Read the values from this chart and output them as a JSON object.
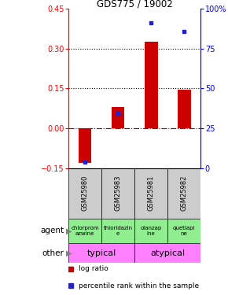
{
  "title": "GDS775 / 19002",
  "samples": [
    "GSM25980",
    "GSM25983",
    "GSM25981",
    "GSM25982"
  ],
  "log_ratios": [
    -0.13,
    0.08,
    0.325,
    0.145
  ],
  "percentile_ranks": [
    4,
    34.5,
    91,
    86
  ],
  "ylim_left": [
    -0.15,
    0.45
  ],
  "ylim_right": [
    0,
    100
  ],
  "yticks_left": [
    -0.15,
    0.0,
    0.15,
    0.3,
    0.45
  ],
  "yticks_right": [
    0,
    25,
    50,
    75,
    100
  ],
  "hlines": [
    0.15,
    0.3
  ],
  "bar_color": "#cc0000",
  "dot_color": "#2222cc",
  "agent_labels": [
    "chlorprom\nazwine",
    "thioridazin\ne",
    "olanzap\nine",
    "quetiapi\nne"
  ],
  "agent_color": "#90ee90",
  "other_groups": [
    [
      "typical",
      2
    ],
    [
      "atypical",
      2
    ]
  ],
  "other_color": "#ff80ff",
  "gsm_bg_color": "#cccccc",
  "legend_bar_label": "log ratio",
  "legend_dot_label": "percentile rank within the sample"
}
